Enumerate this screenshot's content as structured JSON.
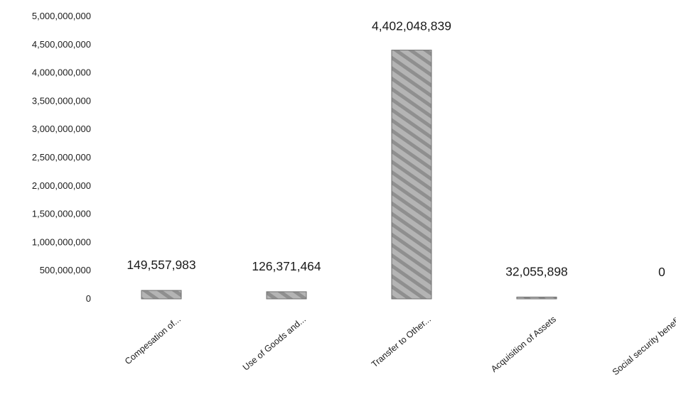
{
  "chart_data": {
    "type": "bar",
    "title": "",
    "xlabel": "",
    "ylabel": "",
    "categories": [
      "Compesation of...",
      "Use of Goods and...",
      "Transfer to Other...",
      "Acquisition of Assets",
      "Social security benefit"
    ],
    "values": [
      149557983,
      126371464,
      4402048839,
      32055898,
      0
    ],
    "data_labels": [
      "149,557,983",
      "126,371,464",
      "4,402,048,839",
      "32,055,898",
      "0"
    ],
    "ylim": [
      0,
      5000000000
    ],
    "yticks": [
      0,
      500000000,
      1000000000,
      1500000000,
      2000000000,
      2500000000,
      3000000000,
      3500000000,
      4000000000,
      4500000000,
      5000000000
    ],
    "ytick_labels": [
      "0",
      "500,000,000",
      "1,000,000,000",
      "1,500,000,000",
      "2,000,000,000",
      "2,500,000,000",
      "3,000,000,000",
      "3,500,000,000",
      "4,000,000,000",
      "4,500,000,000",
      "5,000,000,000"
    ],
    "grid": false,
    "legend": "none",
    "bar_color": "#a8a8a8",
    "bar_edge_color": "#6e6e6e"
  }
}
